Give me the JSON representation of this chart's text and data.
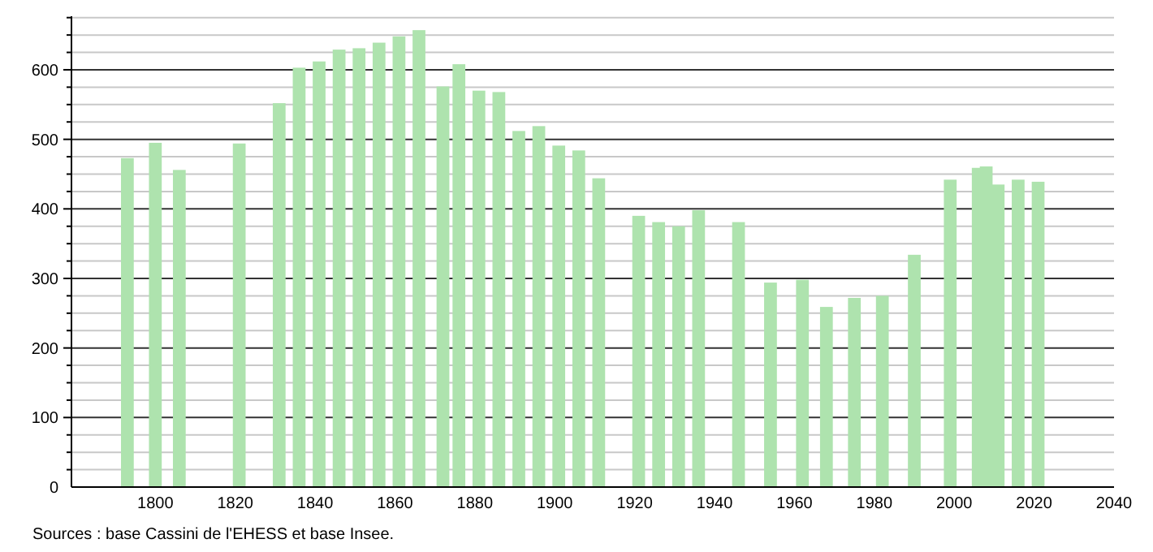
{
  "chart_data": {
    "type": "bar",
    "color": "#aee3ae",
    "x": [
      1793,
      1800,
      1806,
      1821,
      1831,
      1836,
      1841,
      1846,
      1851,
      1856,
      1861,
      1866,
      1872,
      1876,
      1881,
      1886,
      1891,
      1896,
      1901,
      1906,
      1911,
      1921,
      1926,
      1931,
      1936,
      1946,
      1954,
      1962,
      1968,
      1975,
      1982,
      1990,
      1999,
      2006,
      2008,
      2011,
      2016,
      2021
    ],
    "values": [
      473,
      495,
      456,
      494,
      552,
      603,
      612,
      629,
      631,
      639,
      648,
      657,
      576,
      608,
      570,
      568,
      512,
      519,
      491,
      484,
      444,
      390,
      381,
      375,
      398,
      381,
      294,
      298,
      259,
      272,
      275,
      334,
      442,
      459,
      461,
      435,
      442,
      439
    ],
    "xlim": [
      1779,
      2040
    ],
    "xticks": [
      1800,
      1820,
      1840,
      1860,
      1880,
      1900,
      1920,
      1940,
      1960,
      1980,
      2000,
      2020,
      2040
    ],
    "ylim": [
      0,
      677
    ],
    "yticks": [
      0,
      {
        "value": 25,
        "label": null
      },
      {
        "value": 50,
        "label": null
      },
      {
        "value": 75,
        "label": null
      },
      100,
      {
        "value": 125,
        "label": null
      },
      {
        "value": 150,
        "label": null
      },
      {
        "value": 175,
        "label": null
      },
      200,
      {
        "value": 225,
        "label": null
      },
      {
        "value": 250,
        "label": null
      },
      {
        "value": 275,
        "label": null
      },
      300,
      {
        "value": 325,
        "label": null
      },
      {
        "value": 350,
        "label": null
      },
      {
        "value": 375,
        "label": null
      },
      400,
      {
        "value": 425,
        "label": null
      },
      {
        "value": 450,
        "label": null
      },
      {
        "value": 475,
        "label": null
      },
      500,
      {
        "value": 525,
        "label": null
      },
      {
        "value": 550,
        "label": null
      },
      {
        "value": 575,
        "label": null
      },
      600,
      {
        "value": 625,
        "label": null
      },
      {
        "value": 650,
        "label": null
      },
      {
        "value": 675,
        "label": null
      }
    ],
    "grid": "y",
    "annotations": [
      "Sources : base Cassini de l'EHESS et base Insee."
    ]
  }
}
